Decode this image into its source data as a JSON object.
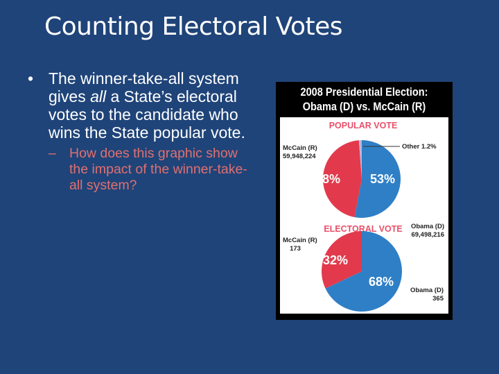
{
  "slide": {
    "title": "Counting Electoral Votes",
    "bullet": {
      "marker": "•",
      "text_before": "The winner-take-all system gives ",
      "text_italic": "all",
      "text_after": " a State’s electoral votes to the candidate who wins the State popular vote."
    },
    "sub_bullet": {
      "marker": "–",
      "text": "How does this graphic show the impact of the winner-take-all system?"
    }
  },
  "colors": {
    "background": "#1f4479",
    "obama": "#2f7fc6",
    "mccain": "#e23a4c",
    "other": "#b9b6d8",
    "heading_red": "#e8506a",
    "sub_bullet": "#e07070"
  },
  "chart_data": [
    {
      "type": "pie",
      "title": "2008 Presidential Election: Obama (D) vs. McCain (R)",
      "subtitle": "POPULAR VOTE",
      "slices": [
        {
          "name": "Obama (D)",
          "value": 53,
          "label": "53%",
          "count": "69,498,216"
        },
        {
          "name": "McCain (R)",
          "value": 45.8,
          "label": "45.8%",
          "count": "59,948,224"
        },
        {
          "name": "Other",
          "value": 1.2,
          "label": "Other 1.2%"
        }
      ]
    },
    {
      "type": "pie",
      "subtitle": "ELECTORAL VOTE",
      "slices": [
        {
          "name": "Obama (D)",
          "value": 68,
          "label": "68%",
          "count": "365"
        },
        {
          "name": "McCain (R)",
          "value": 32,
          "label": "32%",
          "count": "173"
        }
      ]
    }
  ],
  "graphic_title_lines": [
    "2008 Presidential Election:",
    "Obama (D) vs. McCain (R)"
  ]
}
